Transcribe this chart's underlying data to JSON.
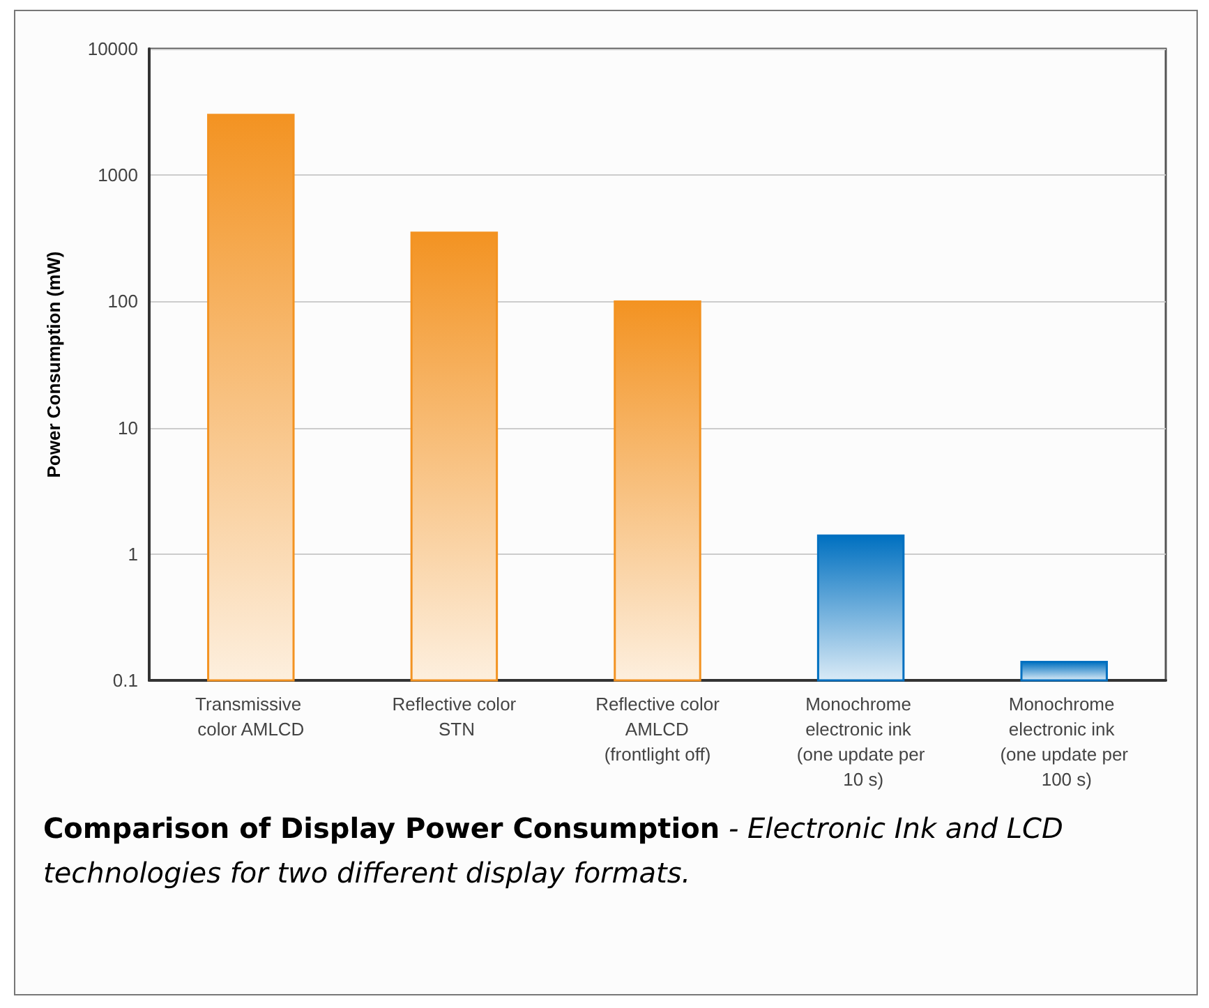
{
  "chart_data": {
    "type": "bar",
    "title": "Comparison of Display Power Consumption",
    "subtitle": "- Electronic Ink and LCD technologies for two different display formats.",
    "ylabel": "Power Consumption (mW)",
    "categories": [
      "Transmissive color AMLCD",
      "Reflective color STN",
      "Reflective color AMLCD (frontlight off)",
      "Monochrome electronic ink (one update per 10 s)",
      "Monochrome electronic ink (one update per 100 s)"
    ],
    "values": [
      3000,
      350,
      100,
      1.4,
      0.14
    ],
    "colors": [
      "#f39322",
      "#f39322",
      "#f39322",
      "#0070c0",
      "#0070c0"
    ],
    "log": "y",
    "ylim": [
      0.1,
      10000
    ],
    "yticks": [
      0.1,
      1,
      10,
      100,
      1000,
      10000
    ],
    "grid": "y"
  }
}
